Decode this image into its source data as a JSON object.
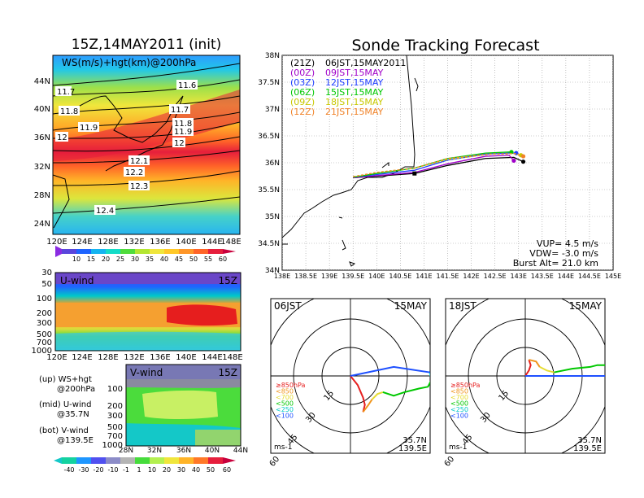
{
  "main_title": "Sonde Tracking Forecast",
  "init_title": "15Z,14MAY2011 (init)",
  "ws_panel": {
    "label": "WS(m/s)+hgt(km)@200hPa",
    "y_ticks": [
      "44N",
      "40N",
      "36N",
      "32N",
      "28N",
      "24N"
    ],
    "x_ticks": [
      "120E",
      "124E",
      "128E",
      "132E",
      "136E",
      "140E",
      "144E",
      "148E"
    ],
    "contour_labels": [
      "11.6",
      "11.7",
      "11.8",
      "11.9",
      "12",
      "12.1",
      "12.2",
      "12.3",
      "12.4",
      "11.7",
      "11.8",
      "11.9",
      "12"
    ],
    "colorbar_labels": [
      "10",
      "15",
      "20",
      "25",
      "30",
      "35",
      "40",
      "45",
      "50",
      "55",
      "60"
    ]
  },
  "u_panel": {
    "label": "U-wind",
    "time": "15Z",
    "y_ticks": [
      "30",
      "50",
      "100",
      "200",
      "300",
      "500",
      "700",
      "1000"
    ],
    "x_ticks": [
      "120E",
      "124E",
      "128E",
      "132E",
      "136E",
      "140E",
      "144E",
      "148E"
    ]
  },
  "v_panel": {
    "label": "V-wind",
    "time": "15Z",
    "y_ticks": [
      "100",
      "200",
      "300",
      "500",
      "700",
      "1000"
    ],
    "x_ticks": [
      "28N",
      "32N",
      "36N",
      "40N",
      "44N"
    ],
    "colorbar_labels": [
      "-40",
      "-30",
      "-20",
      "-10",
      "-1",
      "1",
      "10",
      "20",
      "30",
      "40",
      "50",
      "60"
    ]
  },
  "legend_notes": [
    {
      "head": "(up) WS+hgt",
      "sub": "@200hPa"
    },
    {
      "head": "(mid) U-wind",
      "sub": "@35.7N"
    },
    {
      "head": "(bot) V-wind",
      "sub": "@139.5E"
    }
  ],
  "map_panel": {
    "y_ticks": [
      "38N",
      "37.5N",
      "37N",
      "36.5N",
      "36N",
      "35.5N",
      "35N",
      "34.5N",
      "34N"
    ],
    "x_ticks": [
      "138E",
      "138.5E",
      "139E",
      "139.5E",
      "140E",
      "140.5E",
      "141E",
      "141.5E",
      "142E",
      "142.5E",
      "143E",
      "143.5E",
      "144E",
      "144.5E",
      "145E"
    ],
    "legend": [
      {
        "code": "(21Z)",
        "text": "06JST,15MAY2011",
        "color": "#000000"
      },
      {
        "code": "(00Z)",
        "text": "09JST,15MAY",
        "color": "#a000c8"
      },
      {
        "code": "(03Z)",
        "text": "12JST,15MAY",
        "color": "#1e3cff"
      },
      {
        "code": "(06Z)",
        "text": "15JST,15MAY",
        "color": "#00c800"
      },
      {
        "code": "(09Z)",
        "text": "18JST,15MAY",
        "color": "#c8c800"
      },
      {
        "code": "(12Z)",
        "text": "21JST,15MAY",
        "color": "#f08228"
      }
    ],
    "stats": [
      "VUP= 4.5 m/s",
      "VDW= -3.0 m/s",
      "Burst Alt= 21.0 km"
    ]
  },
  "hodograph_left": {
    "time": "06JST",
    "date": "15MAY",
    "ring_labels": [
      "15",
      "30",
      "45",
      "60"
    ],
    "unit": "ms-1",
    "lat": "35.7N",
    "lon": "139.5E",
    "levels": [
      {
        "text": "≥850hPa",
        "color": "#e61e1e"
      },
      {
        "text": "<850",
        "color": "#f0961e"
      },
      {
        "text": "<700",
        "color": "#e6dc32"
      },
      {
        "text": "<500",
        "color": "#00c800"
      },
      {
        "text": "<250",
        "color": "#00c8c8"
      },
      {
        "text": "<100",
        "color": "#1e50ff"
      }
    ]
  },
  "hodograph_right": {
    "time": "18JST",
    "date": "15MAY",
    "ring_labels": [
      "15",
      "30",
      "45",
      "60"
    ],
    "unit": "ms-1",
    "lat": "35.7N",
    "lon": "139.5E",
    "levels": [
      {
        "text": "≥850hPa",
        "color": "#e61e1e"
      },
      {
        "text": "<850",
        "color": "#f0961e"
      },
      {
        "text": "<700",
        "color": "#e6dc32"
      },
      {
        "text": "<500",
        "color": "#00c800"
      },
      {
        "text": "<250",
        "color": "#00c8c8"
      },
      {
        "text": "<100",
        "color": "#1e50ff"
      }
    ]
  },
  "chart_data": [
    {
      "type": "line",
      "x_axis": "longitude (deg E)",
      "y_axis": "latitude (deg N)",
      "xlim": [
        138,
        145
      ],
      "ylim": [
        34,
        38
      ],
      "launch": {
        "x": 140.8,
        "y": 35.8
      },
      "series": [
        {
          "name": "(21Z) 06JST,15MAY2011",
          "color": "#000000",
          "x": [
            139.5,
            140.0,
            140.8,
            141.5,
            142.3,
            142.9,
            143.1
          ],
          "y": [
            35.72,
            35.75,
            35.8,
            35.95,
            36.08,
            36.1,
            36.02
          ]
        },
        {
          "name": "(00Z) 09JST,15MAY",
          "color": "#a000c8",
          "x": [
            139.5,
            140.0,
            140.8,
            141.5,
            142.3,
            142.8,
            142.9
          ],
          "y": [
            35.72,
            35.76,
            35.82,
            35.98,
            36.12,
            36.14,
            36.04
          ]
        },
        {
          "name": "(03Z) 12JST,15MAY",
          "color": "#1e3cff",
          "x": [
            139.5,
            140.0,
            140.8,
            141.5,
            142.3,
            142.8,
            142.95
          ],
          "y": [
            35.73,
            35.78,
            35.86,
            36.05,
            36.16,
            36.18,
            36.18
          ]
        },
        {
          "name": "(06Z) 15JST,15MAY",
          "color": "#00c800",
          "x": [
            139.5,
            140.0,
            140.8,
            141.5,
            142.3,
            142.8,
            142.85
          ],
          "y": [
            35.73,
            35.8,
            35.9,
            36.08,
            36.18,
            36.2,
            36.2
          ]
        },
        {
          "name": "(09Z) 18JST,15MAY",
          "color": "#c8c800",
          "x": [
            139.5,
            140.0,
            140.8,
            141.5,
            142.4,
            142.9,
            143.05
          ],
          "y": [
            35.74,
            35.82,
            35.9,
            36.06,
            36.16,
            36.17,
            36.14
          ]
        },
        {
          "name": "(12Z) 21JST,15MAY",
          "color": "#f08228",
          "x": [
            139.5,
            140.0,
            140.8,
            141.5,
            142.4,
            142.95,
            143.1
          ],
          "y": [
            35.74,
            35.82,
            35.9,
            36.08,
            36.16,
            36.17,
            36.12
          ]
        }
      ]
    },
    {
      "type": "line",
      "x_axis": "u (m/s)",
      "y_axis": "v (m/s)",
      "rings": [
        15,
        30,
        45,
        60
      ],
      "series": [
        {
          "color": "#e61e1e",
          "x": [
            0,
            4,
            7,
            8,
            7
          ],
          "y": [
            0,
            -5,
            -12,
            -16,
            -20
          ]
        },
        {
          "color": "#f0961e",
          "x": [
            7,
            10,
            12
          ],
          "y": [
            -20,
            -16,
            -13
          ]
        },
        {
          "color": "#e6dc32",
          "x": [
            12,
            15,
            18
          ],
          "y": [
            -13,
            -10,
            -9
          ]
        },
        {
          "color": "#00c800",
          "x": [
            18,
            24,
            30,
            38,
            43,
            45
          ],
          "y": [
            -9,
            -11,
            -9,
            -7,
            -6,
            -2
          ]
        },
        {
          "color": "#00c8c8",
          "x": [
            45,
            44
          ],
          "y": [
            -2,
            2
          ]
        },
        {
          "color": "#1e50ff",
          "x": [
            44,
            24,
            0
          ],
          "y": [
            2,
            5,
            0
          ]
        }
      ]
    },
    {
      "type": "line",
      "x_axis": "u (m/s)",
      "y_axis": "v (m/s)",
      "rings": [
        15,
        30,
        45,
        60
      ],
      "series": [
        {
          "color": "#e61e1e",
          "x": [
            0,
            2,
            3,
            2
          ],
          "y": [
            0,
            3,
            6,
            9
          ]
        },
        {
          "color": "#f0961e",
          "x": [
            2,
            6,
            8
          ],
          "y": [
            9,
            8,
            5
          ]
        },
        {
          "color": "#e6dc32",
          "x": [
            8,
            12,
            16
          ],
          "y": [
            5,
            3,
            2
          ]
        },
        {
          "color": "#00c800",
          "x": [
            16,
            26,
            36,
            40,
            46,
            50
          ],
          "y": [
            2,
            4,
            5,
            6,
            6,
            3
          ]
        },
        {
          "color": "#00c8c8",
          "x": [
            50,
            52
          ],
          "y": [
            3,
            0
          ]
        },
        {
          "color": "#1e50ff",
          "x": [
            52,
            30,
            0
          ],
          "y": [
            0,
            0,
            0
          ]
        }
      ]
    }
  ]
}
